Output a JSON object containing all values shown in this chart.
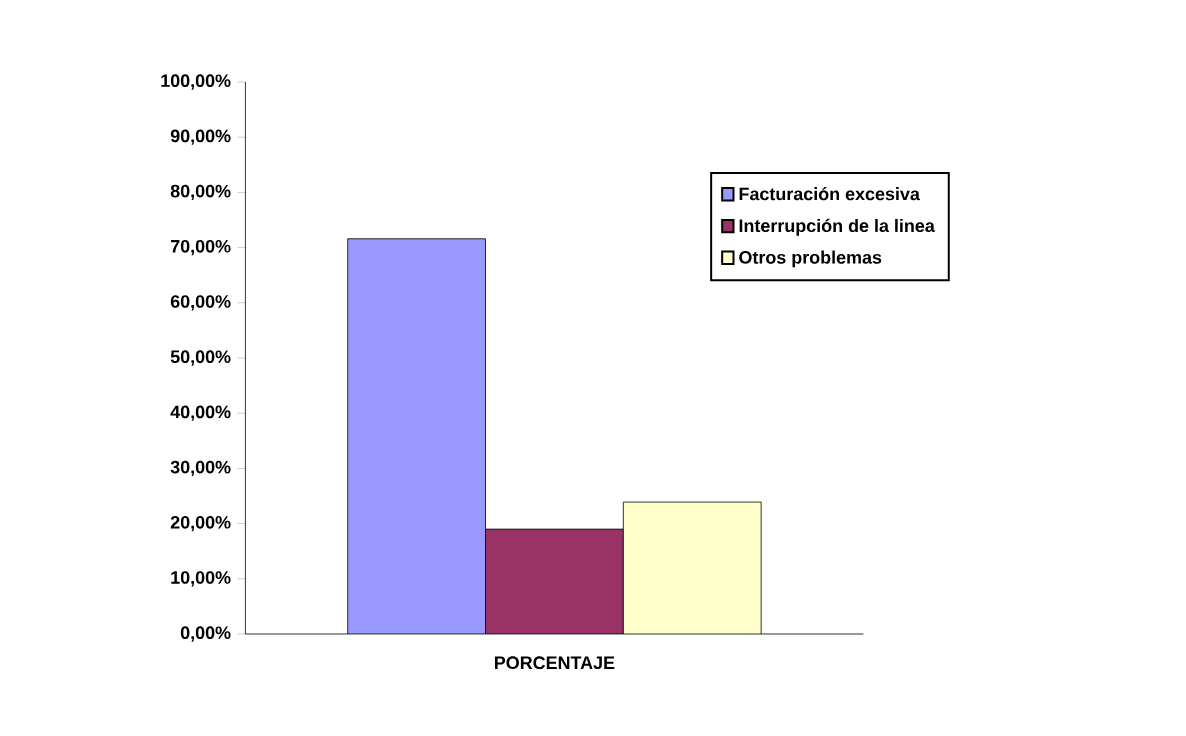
{
  "chart_data": {
    "type": "bar",
    "categories": [
      "PORCENTAJE"
    ],
    "series": [
      {
        "name": "Facturación excesiva",
        "color": "#9999ff",
        "values": [
          71.6
        ]
      },
      {
        "name": "Interrupción de la linea",
        "color": "#993366",
        "values": [
          19.0
        ]
      },
      {
        "name": "Otros problemas",
        "color": "#ffffcc",
        "values": [
          23.9
        ]
      }
    ],
    "ylim": [
      0,
      100
    ],
    "yticks": [
      {
        "value": 0,
        "label": "0,00%"
      },
      {
        "value": 10,
        "label": "10,00%"
      },
      {
        "value": 20,
        "label": "20,00%"
      },
      {
        "value": 30,
        "label": "30,00%"
      },
      {
        "value": 40,
        "label": "40,00%"
      },
      {
        "value": 50,
        "label": "50,00%"
      },
      {
        "value": 60,
        "label": "60,00%"
      },
      {
        "value": 70,
        "label": "70,00%"
      },
      {
        "value": 80,
        "label": "80,00%"
      },
      {
        "value": 90,
        "label": "90,00%"
      },
      {
        "value": 100,
        "label": "100,00%"
      }
    ],
    "grid": false,
    "legend": "top right"
  }
}
